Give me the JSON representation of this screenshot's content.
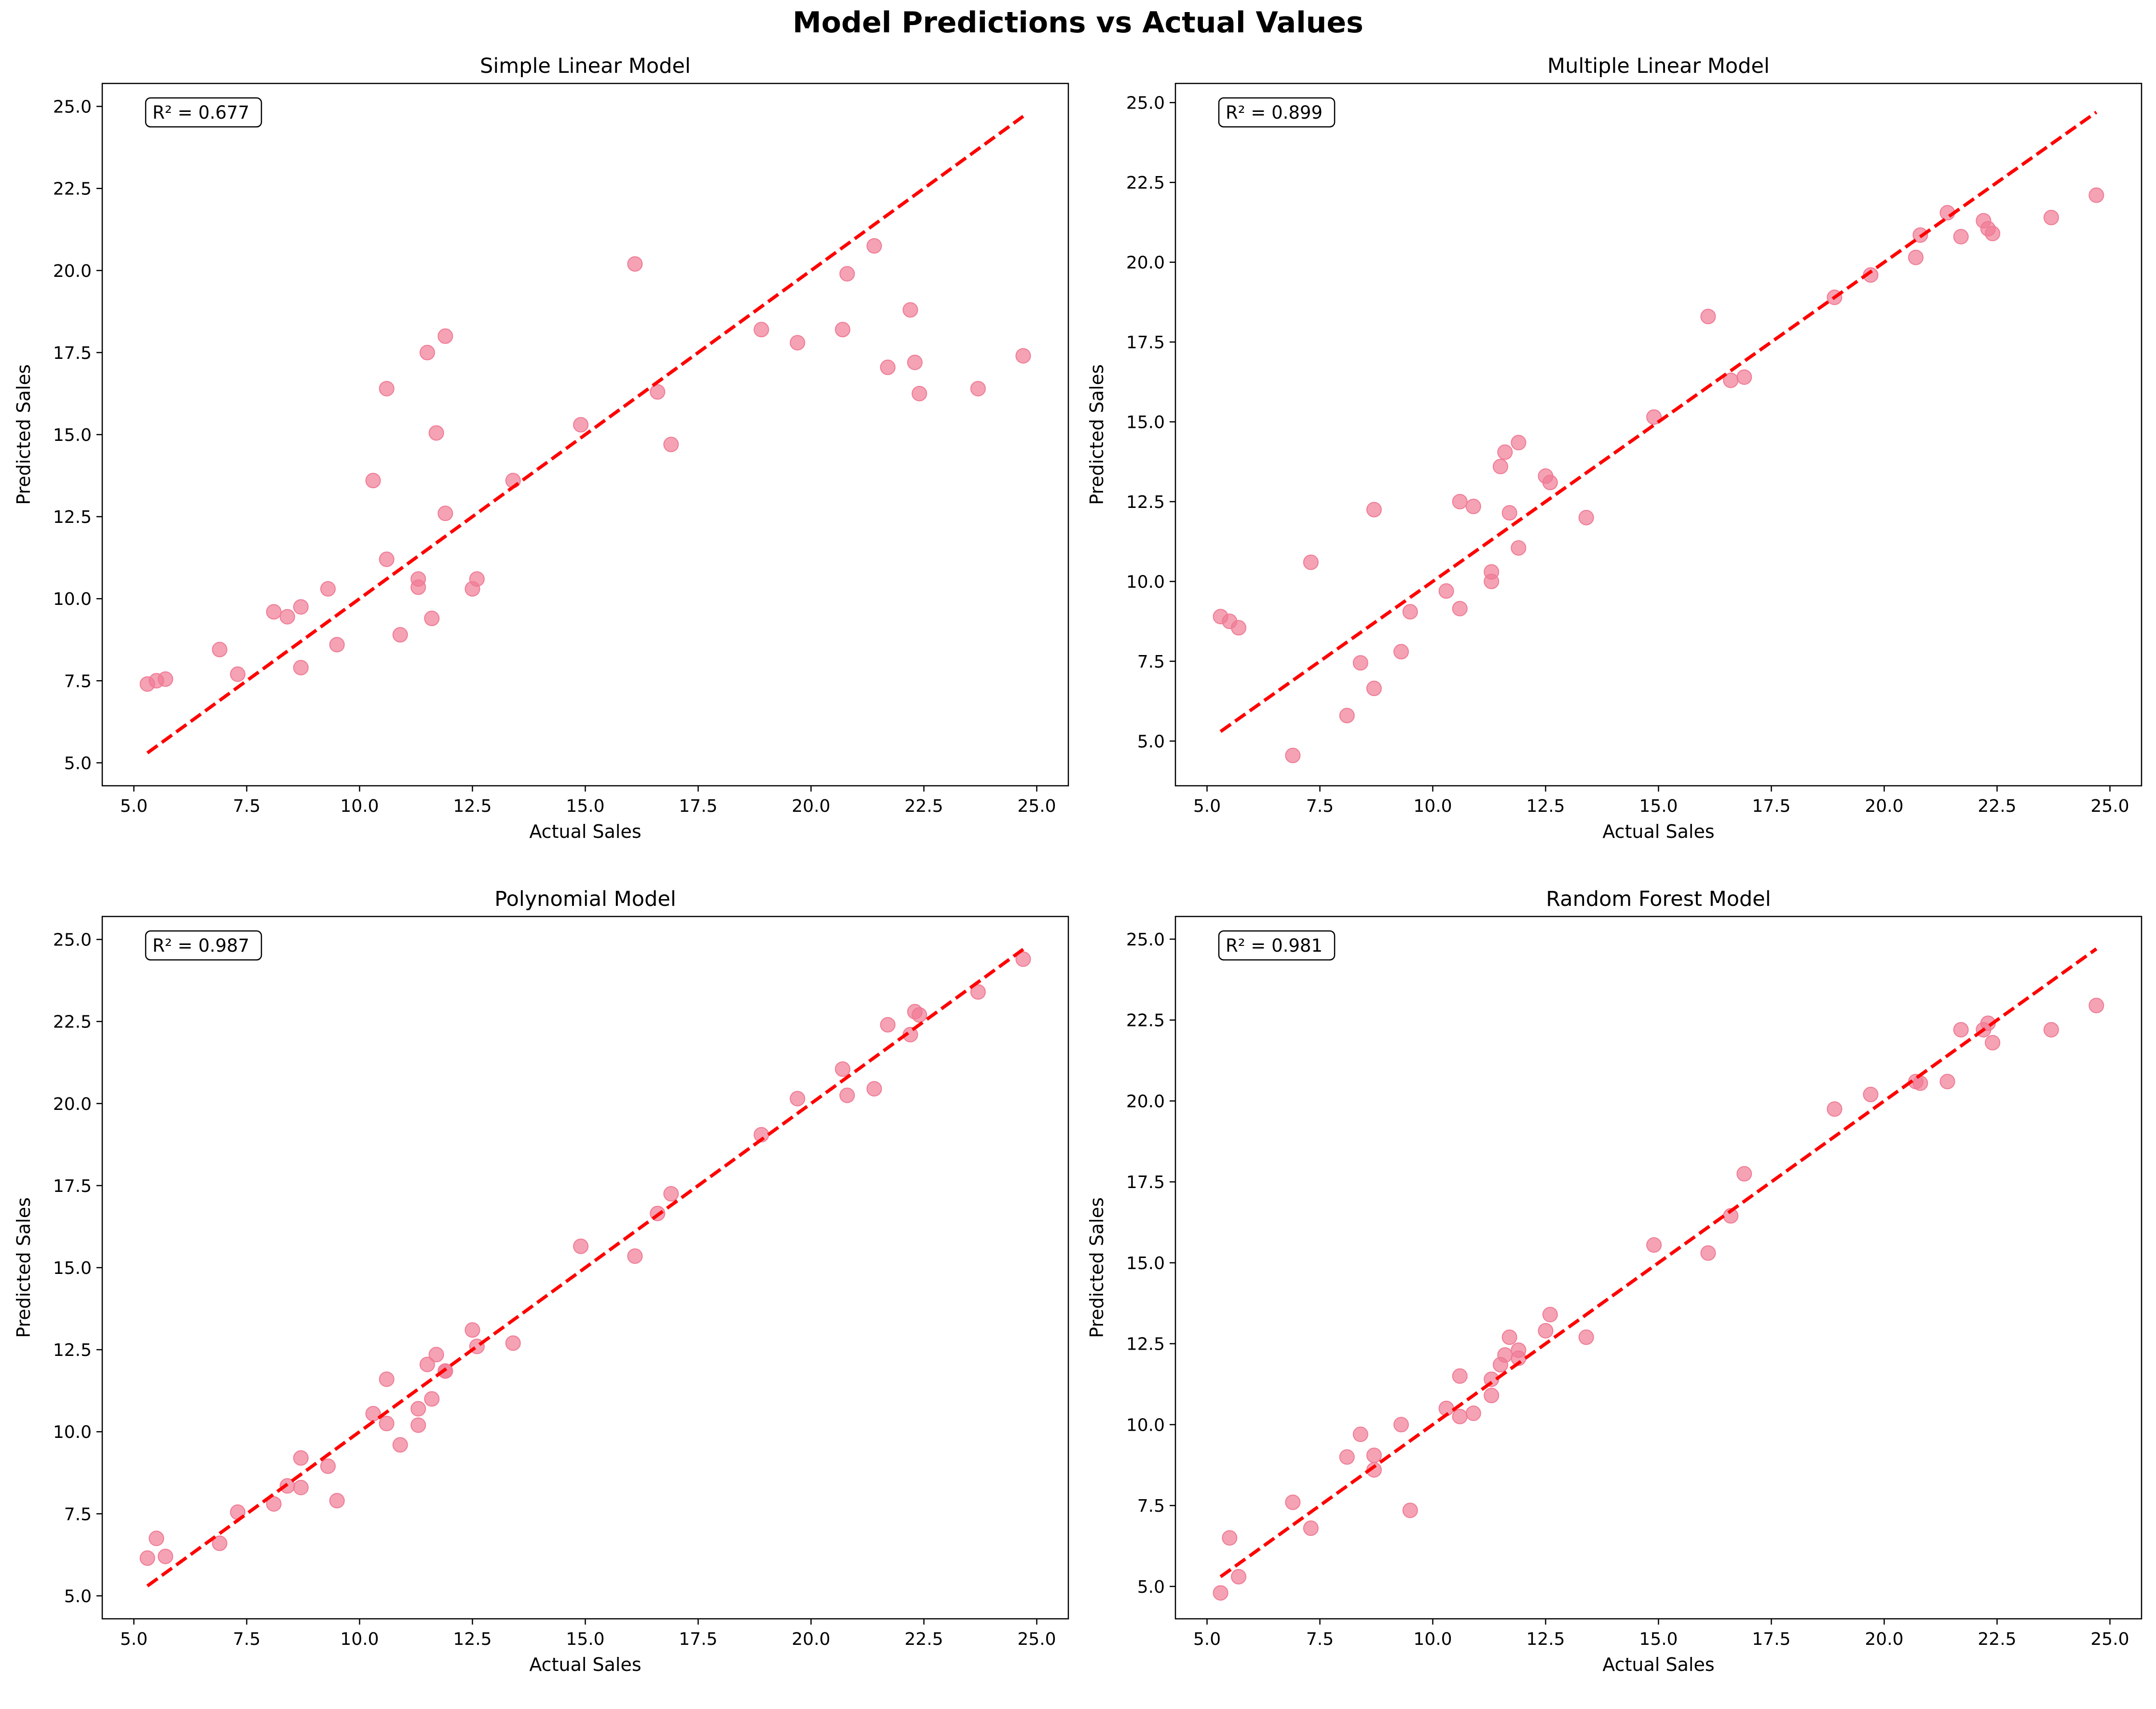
{
  "figure": {
    "title": "Model Predictions vs Actual Values"
  },
  "chart_data": [
    {
      "type": "scatter",
      "title": "Simple Linear Model",
      "xlabel": "Actual Sales",
      "ylabel": "Predicted Sales",
      "annotation": "R² = 0.677",
      "xlim": [
        4.3,
        25.7
      ],
      "ylim": [
        4.3,
        25.7
      ],
      "xticks": [
        5.0,
        7.5,
        10.0,
        12.5,
        15.0,
        17.5,
        20.0,
        22.5,
        25.0
      ],
      "yticks": [
        5.0,
        7.5,
        10.0,
        12.5,
        15.0,
        17.5,
        20.0,
        22.5,
        25.0
      ],
      "x_tick_labels": [
        "5.0",
        "7.5",
        "10.0",
        "12.5",
        "15.0",
        "17.5",
        "20.0",
        "22.5",
        "25.0"
      ],
      "y_tick_labels": [
        "5.0",
        "7.5",
        "10.0",
        "12.5",
        "15.0",
        "17.5",
        "20.0",
        "22.5",
        "25.0"
      ],
      "reference_line": {
        "x": [
          5.3,
          24.7
        ],
        "y": [
          5.3,
          24.7
        ],
        "color": "#ff0000",
        "style": "dashed"
      },
      "point_color": "#f07a94",
      "points": [
        [
          5.3,
          7.4
        ],
        [
          5.5,
          7.5
        ],
        [
          5.7,
          7.55
        ],
        [
          6.9,
          8.45
        ],
        [
          7.3,
          7.7
        ],
        [
          8.1,
          9.6
        ],
        [
          8.4,
          9.45
        ],
        [
          8.7,
          7.9
        ],
        [
          8.7,
          9.75
        ],
        [
          9.3,
          10.3
        ],
        [
          9.5,
          8.6
        ],
        [
          10.3,
          13.6
        ],
        [
          10.6,
          11.2
        ],
        [
          10.6,
          16.4
        ],
        [
          10.9,
          8.9
        ],
        [
          11.3,
          10.6
        ],
        [
          11.3,
          10.35
        ],
        [
          11.5,
          17.5
        ],
        [
          11.6,
          9.4
        ],
        [
          11.7,
          15.05
        ],
        [
          11.9,
          12.6
        ],
        [
          11.9,
          18.0
        ],
        [
          12.5,
          10.3
        ],
        [
          12.6,
          10.6
        ],
        [
          13.4,
          13.6
        ],
        [
          14.9,
          15.3
        ],
        [
          16.1,
          20.2
        ],
        [
          16.6,
          16.3
        ],
        [
          16.9,
          14.7
        ],
        [
          18.9,
          18.2
        ],
        [
          19.7,
          17.8
        ],
        [
          20.7,
          18.2
        ],
        [
          20.8,
          19.9
        ],
        [
          21.4,
          20.75
        ],
        [
          21.7,
          17.05
        ],
        [
          22.2,
          18.8
        ],
        [
          22.3,
          17.2
        ],
        [
          22.4,
          16.25
        ],
        [
          23.7,
          16.4
        ],
        [
          24.7,
          17.4
        ]
      ]
    },
    {
      "type": "scatter",
      "title": "Multiple Linear Model",
      "xlabel": "Actual Sales",
      "ylabel": "Predicted Sales",
      "annotation": "R² = 0.899",
      "xlim": [
        4.3,
        25.7
      ],
      "ylim": [
        3.6,
        25.6
      ],
      "xticks": [
        5.0,
        7.5,
        10.0,
        12.5,
        15.0,
        17.5,
        20.0,
        22.5,
        25.0
      ],
      "yticks": [
        5.0,
        7.5,
        10.0,
        12.5,
        15.0,
        17.5,
        20.0,
        22.5,
        25.0
      ],
      "x_tick_labels": [
        "5.0",
        "7.5",
        "10.0",
        "12.5",
        "15.0",
        "17.5",
        "20.0",
        "22.5",
        "25.0"
      ],
      "y_tick_labels": [
        "5.0",
        "7.5",
        "10.0",
        "12.5",
        "15.0",
        "17.5",
        "20.0",
        "22.5",
        "25.0"
      ],
      "reference_line": {
        "x": [
          5.3,
          24.7
        ],
        "y": [
          5.3,
          24.7
        ],
        "color": "#ff0000",
        "style": "dashed"
      },
      "point_color": "#f07a94",
      "points": [
        [
          5.3,
          8.9
        ],
        [
          5.5,
          8.75
        ],
        [
          5.7,
          8.55
        ],
        [
          6.9,
          4.55
        ],
        [
          7.3,
          10.6
        ],
        [
          8.1,
          5.8
        ],
        [
          8.4,
          7.45
        ],
        [
          8.7,
          6.65
        ],
        [
          8.7,
          12.25
        ],
        [
          9.3,
          7.8
        ],
        [
          9.5,
          9.05
        ],
        [
          10.3,
          9.7
        ],
        [
          10.6,
          9.15
        ],
        [
          10.6,
          12.5
        ],
        [
          10.9,
          12.35
        ],
        [
          11.3,
          10.3
        ],
        [
          11.3,
          10.0
        ],
        [
          11.5,
          13.6
        ],
        [
          11.6,
          14.05
        ],
        [
          11.7,
          12.15
        ],
        [
          11.9,
          11.05
        ],
        [
          11.9,
          14.35
        ],
        [
          12.5,
          13.3
        ],
        [
          12.6,
          13.1
        ],
        [
          13.4,
          12.0
        ],
        [
          14.9,
          15.15
        ],
        [
          16.1,
          18.3
        ],
        [
          16.6,
          16.3
        ],
        [
          16.9,
          16.4
        ],
        [
          18.9,
          18.9
        ],
        [
          19.7,
          19.6
        ],
        [
          20.7,
          20.15
        ],
        [
          20.8,
          20.85
        ],
        [
          21.4,
          21.55
        ],
        [
          21.7,
          20.8
        ],
        [
          22.2,
          21.3
        ],
        [
          22.3,
          21.05
        ],
        [
          22.4,
          20.9
        ],
        [
          23.7,
          21.4
        ],
        [
          24.7,
          22.1
        ]
      ]
    },
    {
      "type": "scatter",
      "title": "Polynomial Model",
      "xlabel": "Actual Sales",
      "ylabel": "Predicted Sales",
      "annotation": "R² = 0.987",
      "xlim": [
        4.3,
        25.7
      ],
      "ylim": [
        4.3,
        25.7
      ],
      "xticks": [
        5.0,
        7.5,
        10.0,
        12.5,
        15.0,
        17.5,
        20.0,
        22.5,
        25.0
      ],
      "yticks": [
        5.0,
        7.5,
        10.0,
        12.5,
        15.0,
        17.5,
        20.0,
        22.5,
        25.0
      ],
      "x_tick_labels": [
        "5.0",
        "7.5",
        "10.0",
        "12.5",
        "15.0",
        "17.5",
        "20.0",
        "22.5",
        "25.0"
      ],
      "y_tick_labels": [
        "5.0",
        "7.5",
        "10.0",
        "12.5",
        "15.0",
        "17.5",
        "20.0",
        "22.5",
        "25.0"
      ],
      "reference_line": {
        "x": [
          5.3,
          24.7
        ],
        "y": [
          5.3,
          24.7
        ],
        "color": "#ff0000",
        "style": "dashed"
      },
      "point_color": "#f07a94",
      "points": [
        [
          5.3,
          6.15
        ],
        [
          5.5,
          6.75
        ],
        [
          5.7,
          6.2
        ],
        [
          6.9,
          6.6
        ],
        [
          7.3,
          7.55
        ],
        [
          8.1,
          7.8
        ],
        [
          8.4,
          8.35
        ],
        [
          8.7,
          8.3
        ],
        [
          8.7,
          9.2
        ],
        [
          9.3,
          8.95
        ],
        [
          9.5,
          7.9
        ],
        [
          10.3,
          10.55
        ],
        [
          10.6,
          10.25
        ],
        [
          10.6,
          11.6
        ],
        [
          10.9,
          9.6
        ],
        [
          11.3,
          10.7
        ],
        [
          11.3,
          10.2
        ],
        [
          11.5,
          12.05
        ],
        [
          11.6,
          11.0
        ],
        [
          11.7,
          12.35
        ],
        [
          11.9,
          11.85
        ],
        [
          11.9,
          11.85
        ],
        [
          12.5,
          13.1
        ],
        [
          12.6,
          12.6
        ],
        [
          13.4,
          12.7
        ],
        [
          14.9,
          15.65
        ],
        [
          16.1,
          15.35
        ],
        [
          16.6,
          16.65
        ],
        [
          16.9,
          17.25
        ],
        [
          18.9,
          19.05
        ],
        [
          19.7,
          20.15
        ],
        [
          20.7,
          21.05
        ],
        [
          20.8,
          20.25
        ],
        [
          21.4,
          20.45
        ],
        [
          21.7,
          22.4
        ],
        [
          22.2,
          22.1
        ],
        [
          22.3,
          22.8
        ],
        [
          22.4,
          22.7
        ],
        [
          23.7,
          23.4
        ],
        [
          24.7,
          24.4
        ]
      ]
    },
    {
      "type": "scatter",
      "title": "Random Forest Model",
      "xlabel": "Actual Sales",
      "ylabel": "Predicted Sales",
      "annotation": "R² = 0.981",
      "xlim": [
        4.3,
        25.7
      ],
      "ylim": [
        4.0,
        25.7
      ],
      "xticks": [
        5.0,
        7.5,
        10.0,
        12.5,
        15.0,
        17.5,
        20.0,
        22.5,
        25.0
      ],
      "yticks": [
        5.0,
        7.5,
        10.0,
        12.5,
        15.0,
        17.5,
        20.0,
        22.5,
        25.0
      ],
      "x_tick_labels": [
        "5.0",
        "7.5",
        "10.0",
        "12.5",
        "15.0",
        "17.5",
        "20.0",
        "22.5",
        "25.0"
      ],
      "y_tick_labels": [
        "5.0",
        "7.5",
        "10.0",
        "12.5",
        "15.0",
        "17.5",
        "20.0",
        "22.5",
        "25.0"
      ],
      "reference_line": {
        "x": [
          5.3,
          24.7
        ],
        "y": [
          5.3,
          24.7
        ],
        "color": "#ff0000",
        "style": "dashed"
      },
      "point_color": "#f07a94",
      "points": [
        [
          5.3,
          4.8
        ],
        [
          5.5,
          6.5
        ],
        [
          5.7,
          5.3
        ],
        [
          6.9,
          7.6
        ],
        [
          7.3,
          6.8
        ],
        [
          8.1,
          9.0
        ],
        [
          8.4,
          9.7
        ],
        [
          8.7,
          8.6
        ],
        [
          8.7,
          9.05
        ],
        [
          9.3,
          10.0
        ],
        [
          9.5,
          7.35
        ],
        [
          10.3,
          10.5
        ],
        [
          10.6,
          10.25
        ],
        [
          10.6,
          11.5
        ],
        [
          10.9,
          10.35
        ],
        [
          11.3,
          10.9
        ],
        [
          11.3,
          11.4
        ],
        [
          11.5,
          11.85
        ],
        [
          11.6,
          12.15
        ],
        [
          11.7,
          12.7
        ],
        [
          11.9,
          12.3
        ],
        [
          11.9,
          12.05
        ],
        [
          12.5,
          12.9
        ],
        [
          12.6,
          13.4
        ],
        [
          13.4,
          12.7
        ],
        [
          14.9,
          15.55
        ],
        [
          16.1,
          15.3
        ],
        [
          16.6,
          16.45
        ],
        [
          16.9,
          17.75
        ],
        [
          18.9,
          19.75
        ],
        [
          19.7,
          20.2
        ],
        [
          20.7,
          20.6
        ],
        [
          20.8,
          20.55
        ],
        [
          21.4,
          20.6
        ],
        [
          21.7,
          22.2
        ],
        [
          22.2,
          22.2
        ],
        [
          22.3,
          22.4
        ],
        [
          22.4,
          21.8
        ],
        [
          23.7,
          22.2
        ],
        [
          24.7,
          22.95
        ]
      ]
    }
  ]
}
